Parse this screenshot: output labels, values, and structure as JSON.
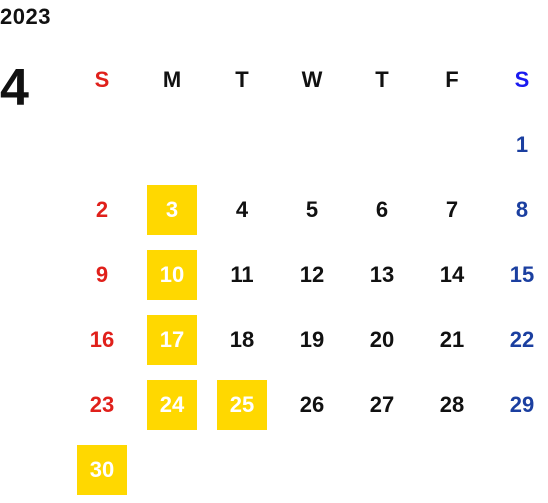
{
  "year": "2023",
  "month": "4",
  "weekdays": [
    "S",
    "M",
    "T",
    "W",
    "T",
    "F",
    "S"
  ],
  "first_weekday_offset": 6,
  "days": [
    {
      "day": "1",
      "kind": "sat",
      "highlight": false
    },
    {
      "day": "2",
      "kind": "sun",
      "highlight": false
    },
    {
      "day": "3",
      "kind": "weekday",
      "highlight": true
    },
    {
      "day": "4",
      "kind": "weekday",
      "highlight": false
    },
    {
      "day": "5",
      "kind": "weekday",
      "highlight": false
    },
    {
      "day": "6",
      "kind": "weekday",
      "highlight": false
    },
    {
      "day": "7",
      "kind": "weekday",
      "highlight": false
    },
    {
      "day": "8",
      "kind": "sat",
      "highlight": false
    },
    {
      "day": "9",
      "kind": "sun",
      "highlight": false
    },
    {
      "day": "10",
      "kind": "weekday",
      "highlight": true
    },
    {
      "day": "11",
      "kind": "weekday",
      "highlight": false
    },
    {
      "day": "12",
      "kind": "weekday",
      "highlight": false
    },
    {
      "day": "13",
      "kind": "weekday",
      "highlight": false
    },
    {
      "day": "14",
      "kind": "weekday",
      "highlight": false
    },
    {
      "day": "15",
      "kind": "sat",
      "highlight": false
    },
    {
      "day": "16",
      "kind": "sun",
      "highlight": false
    },
    {
      "day": "17",
      "kind": "weekday",
      "highlight": true
    },
    {
      "day": "18",
      "kind": "weekday",
      "highlight": false
    },
    {
      "day": "19",
      "kind": "weekday",
      "highlight": false
    },
    {
      "day": "20",
      "kind": "weekday",
      "highlight": false
    },
    {
      "day": "21",
      "kind": "weekday",
      "highlight": false
    },
    {
      "day": "22",
      "kind": "sat",
      "highlight": false
    },
    {
      "day": "23",
      "kind": "sun",
      "highlight": false
    },
    {
      "day": "24",
      "kind": "weekday",
      "highlight": true
    },
    {
      "day": "25",
      "kind": "weekday",
      "highlight": true
    },
    {
      "day": "26",
      "kind": "weekday",
      "highlight": false
    },
    {
      "day": "27",
      "kind": "weekday",
      "highlight": false
    },
    {
      "day": "28",
      "kind": "weekday",
      "highlight": false
    },
    {
      "day": "29",
      "kind": "sat",
      "highlight": false
    },
    {
      "day": "30",
      "kind": "sun",
      "highlight": true
    }
  ],
  "colors": {
    "sunday": "#e0201b",
    "saturday_header": "#1a1af0",
    "saturday": "#1b3fa0",
    "highlight_bg": "#ffd800",
    "highlight_text": "#ffffff",
    "text": "#111111"
  }
}
